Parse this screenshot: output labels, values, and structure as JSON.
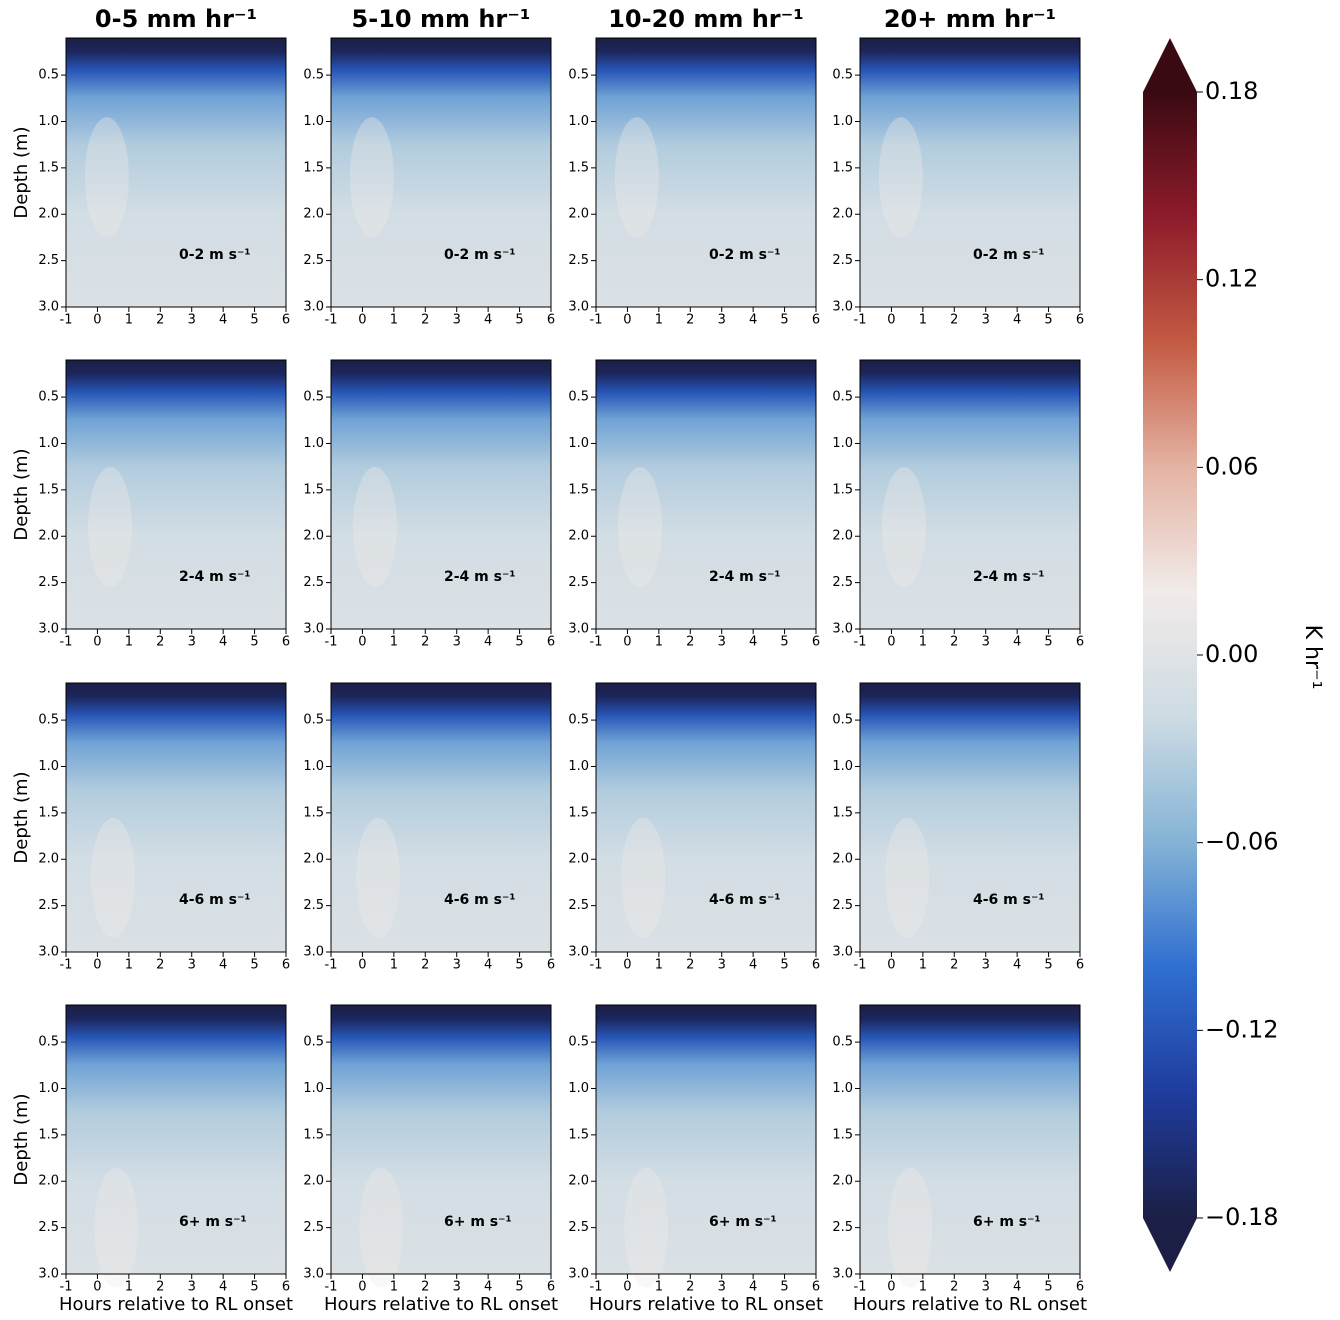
{
  "chart_data": {
    "type": "heatmap",
    "column_titles": [
      "0-5 mm hr⁻¹",
      "5-10 mm hr⁻¹",
      "10-20 mm hr⁻¹",
      "20+ mm hr⁻¹"
    ],
    "row_labels": [
      "0-2 m s⁻¹",
      "2-4 m s⁻¹",
      "4-6 m s⁻¹",
      "6+ m s⁻¹"
    ],
    "xlabel": "Hours relative to RL onset",
    "ylabel": "Depth (m)",
    "xlim": [
      -1,
      6
    ],
    "xticks": [
      -1,
      0,
      1,
      2,
      3,
      4,
      5,
      6
    ],
    "ylim": [
      0.1,
      3.0
    ],
    "y_inverted": true,
    "yticks": [
      0.5,
      {
        "value": 1,
        "label": "1.0"
      },
      1.5,
      {
        "value": 2,
        "label": "2.0"
      },
      2.5,
      {
        "value": 3,
        "label": "3.0"
      }
    ],
    "colorbar": {
      "label": "K hr⁻¹",
      "lim": [
        -0.18,
        0.18
      ],
      "ticks": [
        {
          "value": 0.18,
          "label": "0.18"
        },
        {
          "value": 0.12,
          "label": "0.12"
        },
        {
          "value": 0.06,
          "label": "0.06"
        },
        {
          "value": 0,
          "label": "0.00"
        },
        {
          "value": -0.06,
          "label": "−0.06"
        },
        {
          "value": -0.12,
          "label": "−0.12"
        },
        {
          "value": -0.18,
          "label": "−0.18"
        }
      ]
    },
    "colormap": [
      "#1b1f45",
      "#1f3c9e",
      "#2f6fd0",
      "#84b3d6",
      "#cddbe3",
      "#f1ebe9",
      "#e4b3a3",
      "#c45a42",
      "#8e1b2b",
      "#3a0a12"
    ]
  }
}
